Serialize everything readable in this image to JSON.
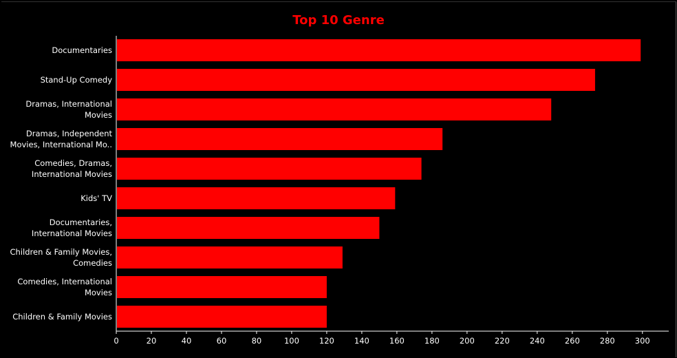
{
  "chart_data": {
    "type": "bar",
    "orientation": "horizontal",
    "title": "Top 10 Genre",
    "categories": [
      [
        "Documentaries"
      ],
      [
        "Stand-Up Comedy"
      ],
      [
        "Dramas, International",
        "Movies"
      ],
      [
        "Dramas, Independent",
        "Movies, International Mo.."
      ],
      [
        "Comedies, Dramas,",
        "International Movies"
      ],
      [
        "Kids' TV"
      ],
      [
        "Documentaries,",
        "International Movies"
      ],
      [
        "Children & Family Movies,",
        "Comedies"
      ],
      [
        "Comedies, International",
        "Movies"
      ],
      [
        "Children & Family Movies"
      ]
    ],
    "values": [
      299,
      273,
      248,
      186,
      174,
      159,
      150,
      129,
      120,
      120
    ],
    "xlim": [
      0,
      315
    ],
    "xticks": [
      0,
      20,
      40,
      60,
      80,
      100,
      120,
      140,
      160,
      180,
      200,
      220,
      240,
      260,
      280,
      300
    ],
    "xlabel": "",
    "ylabel": "",
    "grid": false,
    "colors": {
      "bar": "#ff0000",
      "title": "#ff0000",
      "background": "#000000",
      "text": "#ffffff",
      "axis": "#ffffff"
    }
  }
}
